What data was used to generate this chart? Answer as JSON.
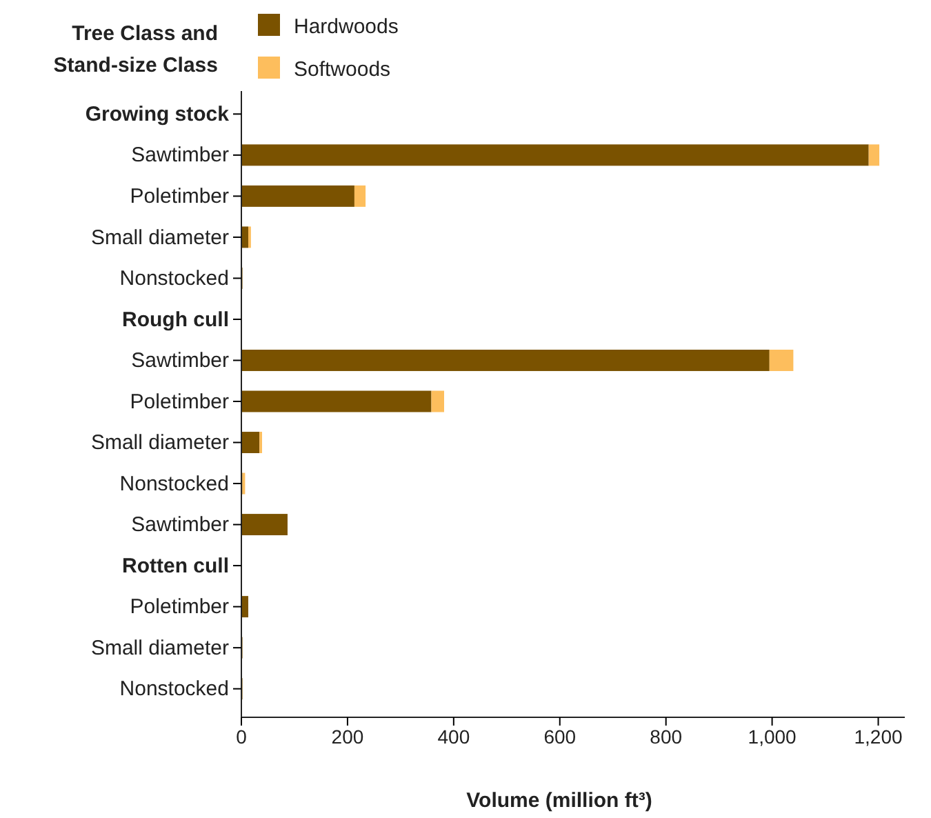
{
  "chart_data": {
    "type": "bar",
    "orientation": "horizontal",
    "stacked": true,
    "ylabel": "Tree Class and Stand-size Class",
    "xlabel": "Volume (million ft³)",
    "categories": [
      "Growing stock",
      "Sawtimber",
      "Poletimber",
      "Small diameter",
      "Nonstocked",
      "Rough cull",
      "Sawtimber",
      "Poletimber",
      "Small diameter",
      "Nonstocked",
      "Sawtimber",
      "Rotten cull",
      "Poletimber",
      "Small diameter",
      "Nonstocked"
    ],
    "series": [
      {
        "name": "Hardwoods",
        "color": "#7a5200",
        "values": [
          null,
          1182,
          213,
          13,
          2,
          null,
          995,
          358,
          34,
          2,
          87,
          null,
          13,
          2,
          2
        ]
      },
      {
        "name": "Softwoods",
        "color": "#fdbe5d",
        "values": [
          null,
          20,
          21,
          5,
          0,
          null,
          45,
          24,
          5,
          5,
          0,
          null,
          0,
          0,
          0
        ]
      }
    ],
    "xlim": [
      0,
      1250
    ],
    "xticks": [
      0,
      200,
      400,
      600,
      800,
      {
        "value": 1000,
        "label": "1,000"
      },
      {
        "value": 1200,
        "label": "1,200"
      }
    ],
    "grid": false,
    "legend": "top"
  }
}
